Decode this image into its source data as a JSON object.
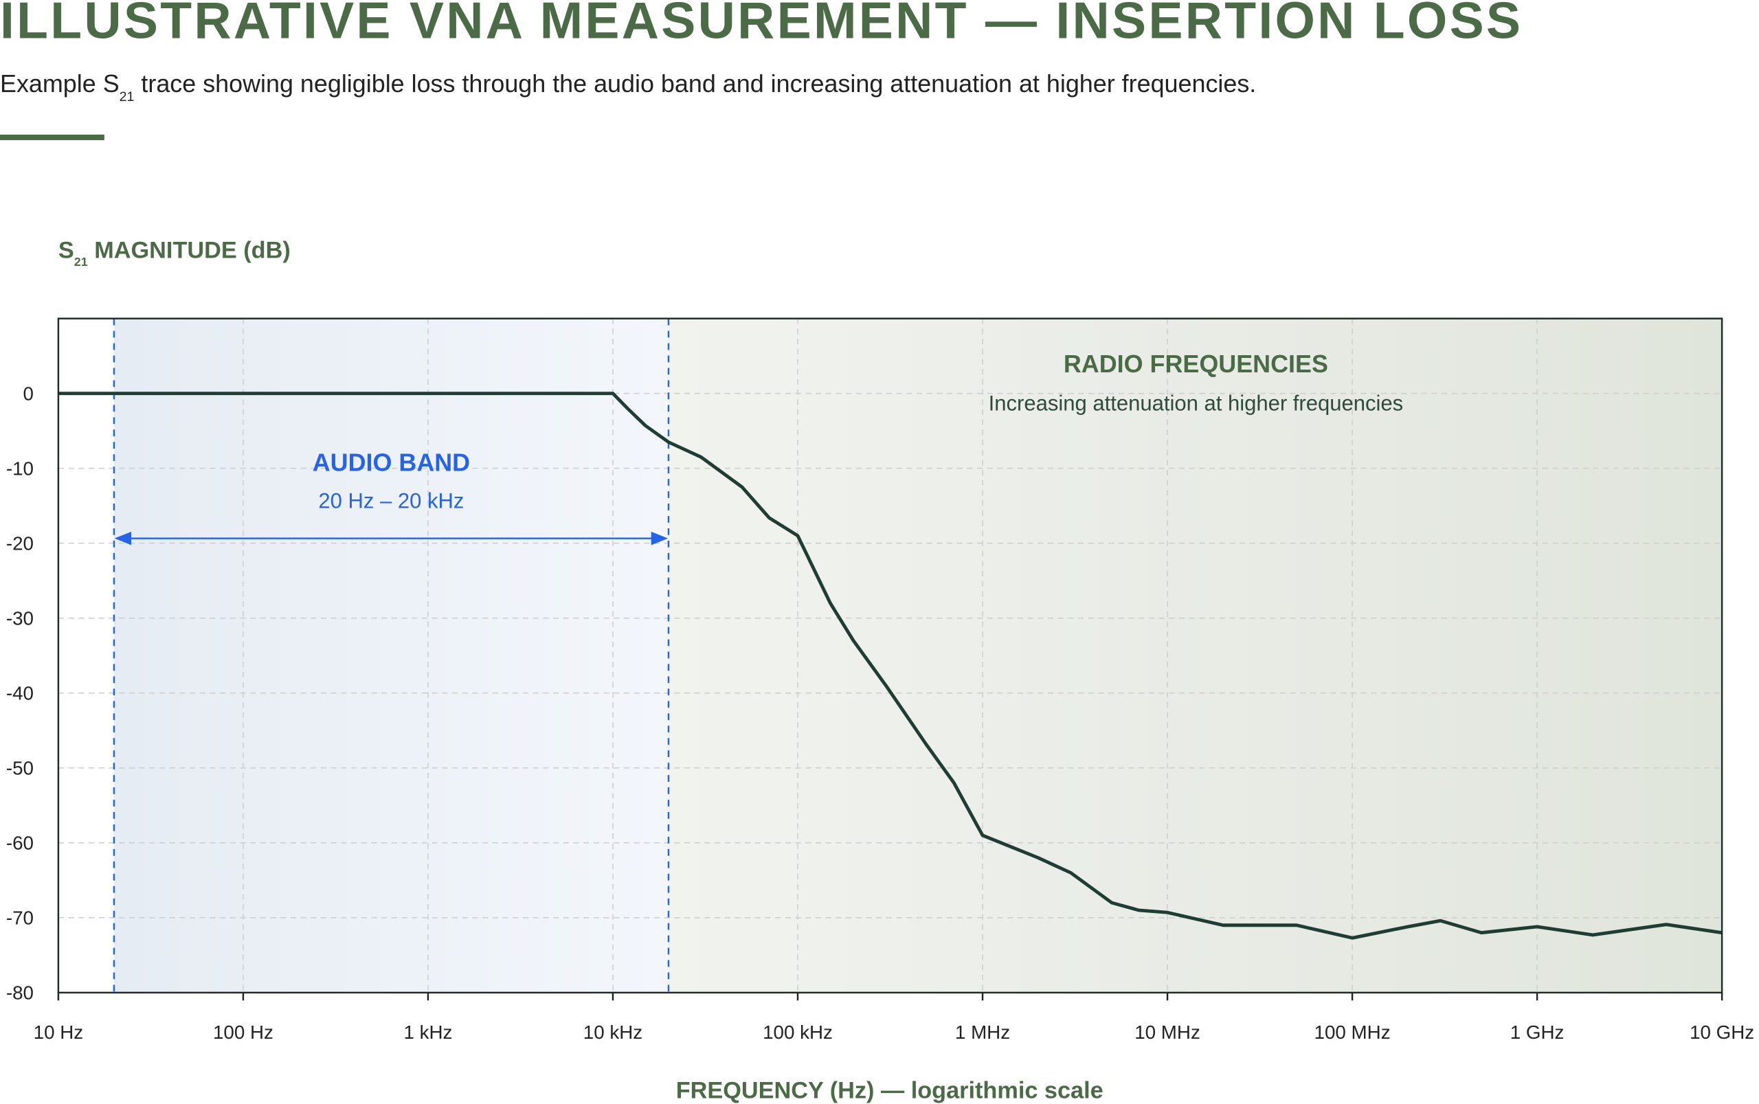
{
  "chart_data": {
    "type": "line",
    "title": "ILLUSTRATIVE VNA MEASUREMENT — INSERTION LOSS",
    "subtitle": {
      "prefix": "Example S",
      "sub": "21",
      "text": " trace showing negligible loss through the audio band and increasing attenuation at higher frequencies."
    },
    "y_label": {
      "prefix": "S",
      "sub": "21",
      "text": " MAGNITUDE (dB)"
    },
    "x_label": "FREQUENCY (Hz) — logarithmic scale",
    "log_x": true,
    "grid": true,
    "color": "#1f3d33",
    "x": [
      10,
      20,
      100,
      1000,
      10000,
      12000,
      15000,
      20000,
      30000,
      50000,
      70000,
      100000,
      150000,
      200000,
      300000,
      500000,
      700000,
      1000000,
      2000000,
      3000000,
      5000000,
      7000000,
      10000000,
      20000000,
      50000000,
      100000000,
      200000000,
      300000000,
      500000000,
      1000000000,
      2000000000,
      5000000000,
      10000000000
    ],
    "values": [
      0,
      0,
      0,
      0,
      0,
      -2,
      -4.3,
      -6.5,
      -8.5,
      -12.5,
      -16.6,
      -19,
      -28,
      -33,
      -39,
      -47,
      -52,
      -59,
      -62,
      -64,
      -68,
      -69,
      -69.3,
      -71,
      -71,
      -72.7,
      -71.2,
      -70.4,
      -72,
      -71.2,
      -72.3,
      -70.9,
      -72
    ],
    "xlim": [
      10,
      10000000000
    ],
    "ylim": [
      -80,
      10
    ],
    "xticks": [
      {
        "value": 10,
        "label": "10 Hz"
      },
      {
        "value": 100,
        "label": "100 Hz"
      },
      {
        "value": 1000,
        "label": "1 kHz"
      },
      {
        "value": 10000,
        "label": "10 kHz"
      },
      {
        "value": 100000,
        "label": "100 kHz"
      },
      {
        "value": 1000000,
        "label": "1 MHz"
      },
      {
        "value": 10000000,
        "label": "10 MHz"
      },
      {
        "value": 100000000,
        "label": "100 MHz"
      },
      {
        "value": 1000000000,
        "label": "1 GHz"
      },
      {
        "value": 10000000000,
        "label": "10 GHz"
      }
    ],
    "yticks": [
      0,
      -10,
      -20,
      -30,
      -40,
      -50,
      -60,
      -70,
      -80
    ],
    "annotations": [
      {
        "label": "AUDIO BAND",
        "sublabel": "20 Hz – 20 kHz",
        "xrange": [
          20,
          20000
        ],
        "color": "#2563eb"
      },
      {
        "label": "RADIO FREQUENCIES",
        "sublabel": "Increasing attenuation at higher frequencies",
        "xrange": [
          20000,
          10000000000
        ],
        "color": "#4a6b45"
      }
    ]
  }
}
